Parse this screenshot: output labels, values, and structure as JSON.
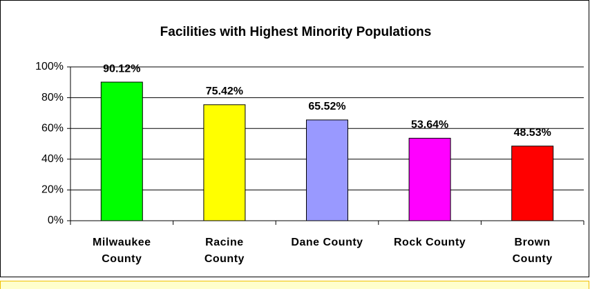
{
  "chart_data": {
    "type": "bar",
    "title": "Facilities with Highest Minority Populations",
    "categories": [
      "Milwaukee\nCounty",
      "Racine\nCounty",
      "Dane County",
      "Rock County",
      "Brown\nCounty"
    ],
    "values": [
      90.12,
      75.42,
      65.52,
      53.64,
      48.53
    ],
    "value_labels": [
      "90.12%",
      "75.42%",
      "65.52%",
      "53.64%",
      "48.53%"
    ],
    "colors": [
      "#00ff00",
      "#ffff00",
      "#9999ff",
      "#ff00ff",
      "#ff0000"
    ],
    "ylim": [
      0,
      100
    ],
    "yticks": [
      {
        "value": 0,
        "label": "0%"
      },
      {
        "value": 20,
        "label": "20%"
      },
      {
        "value": 40,
        "label": "40%"
      },
      {
        "value": 60,
        "label": "60%"
      },
      {
        "value": 80,
        "label": "80%"
      },
      {
        "value": 100,
        "label": "100%"
      }
    ],
    "grid": true
  }
}
